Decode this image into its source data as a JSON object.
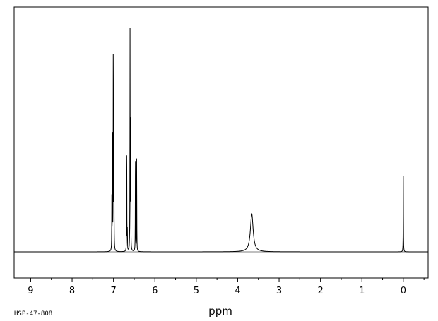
{
  "chart_data": {
    "type": "line",
    "xlabel": "ppm",
    "spectrum_code": "HSP-47-808",
    "x_reversed": true,
    "xlim": [
      9.4,
      -0.6
    ],
    "ylim": [
      0,
      1
    ],
    "x_ticks": [
      9,
      8,
      7,
      6,
      5,
      4,
      3,
      2,
      1,
      0
    ],
    "x_tick_labels": [
      "9",
      "8",
      "7",
      "6",
      "5",
      "4",
      "3",
      "2",
      "1",
      "0"
    ],
    "grid": false,
    "series": [
      {
        "peaks": [
          {
            "ppm": 7.04,
            "intensity": 0.24,
            "width": 0.003
          },
          {
            "ppm": 7.025,
            "intensity": 0.5,
            "width": 0.003
          },
          {
            "ppm": 7.005,
            "intensity": 1.0,
            "width": 0.003
          },
          {
            "ppm": 6.99,
            "intensity": 0.6,
            "width": 0.003
          },
          {
            "ppm": 6.68,
            "intensity": 0.5,
            "width": 0.003
          },
          {
            "ppm": 6.665,
            "intensity": 0.09,
            "width": 0.003
          },
          {
            "ppm": 6.6,
            "intensity": 1.0,
            "width": 0.003
          },
          {
            "ppm": 6.585,
            "intensity": 0.59,
            "width": 0.003
          },
          {
            "ppm": 6.47,
            "intensity": 0.47,
            "width": 0.003
          },
          {
            "ppm": 6.44,
            "intensity": 0.43,
            "width": 0.003
          },
          {
            "ppm": 3.66,
            "intensity": 0.17,
            "width": 0.04
          },
          {
            "ppm": 0.0,
            "intensity": 0.34,
            "width": 0.003
          }
        ]
      }
    ]
  }
}
